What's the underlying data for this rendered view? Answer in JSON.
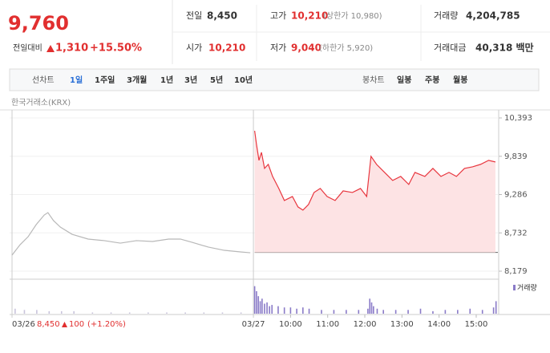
{
  "header": {
    "price": "9,760",
    "change_label": "전일대비",
    "change": "1,310",
    "change_pct": "+15.50%",
    "info": [
      [
        "전일",
        "8,450",
        ""
      ],
      [
        "고가",
        "10,210",
        "(상한가 10,980)"
      ],
      [
        "거래량",
        "4,204,785",
        ""
      ],
      [
        "시가",
        "10,210",
        ""
      ],
      [
        "저가",
        "9,040",
        "(하한가 5,920)"
      ],
      [
        "거래대금",
        "40,318 백만",
        ""
      ]
    ]
  },
  "tabs": {
    "line_label": "선차트",
    "line_items": [
      "1일",
      "1주일",
      "3개월",
      "1년",
      "3년",
      "5년",
      "10년"
    ],
    "selected": 0,
    "candle_label": "봉차트",
    "candle_items": [
      "일봉",
      "주봉",
      "월봉"
    ]
  },
  "source": "한국거래소(KRX)",
  "chart_data": {
    "type": "line",
    "xlim": [
      0,
      785
    ],
    "xticks": [
      {
        "value": 0,
        "label": "03/26"
      },
      {
        "value": 390,
        "label": "03/27"
      },
      {
        "value": 450,
        "label": "10:00"
      },
      {
        "value": 510,
        "label": "11:00"
      },
      {
        "value": 570,
        "label": "12:00"
      },
      {
        "value": 630,
        "label": "13:00"
      },
      {
        "value": 690,
        "label": "14:00"
      },
      {
        "value": 750,
        "label": "15:00"
      }
    ],
    "ylim": [
      8179,
      10393
    ],
    "yticks": [
      {
        "value": 8179,
        "label": "8,179"
      },
      {
        "value": 8732,
        "label": "8,732"
      },
      {
        "value": 9286,
        "label": "9,286"
      },
      {
        "value": 9839,
        "label": "9,839"
      },
      {
        "value": 10393,
        "label": "10,393"
      }
    ],
    "reference_line": 8450,
    "series": [
      {
        "color": "#b8b8b8",
        "fill": false,
        "x": [
          0,
          13,
          26,
          39,
          52,
          58,
          67,
          78,
          97,
          123,
          149,
          175,
          201,
          227,
          253,
          272,
          291,
          317,
          343,
          369,
          385
        ],
        "values": [
          8411,
          8561,
          8677,
          8851,
          8990,
          9025,
          8910,
          8816,
          8712,
          8643,
          8620,
          8584,
          8620,
          8608,
          8643,
          8643,
          8596,
          8527,
          8480,
          8457,
          8445
        ]
      },
      {
        "color": "#e8373f",
        "fill": true,
        "x": [
          392,
          395,
          399,
          403,
          408,
          414,
          421,
          431,
          440,
          453,
          462,
          470,
          479,
          488,
          498,
          509,
          522,
          535,
          550,
          563,
          573,
          580,
          589,
          602,
          615,
          628,
          641,
          651,
          667,
          680,
          693,
          706,
          718,
          731,
          744,
          757,
          770,
          781
        ],
        "values": [
          10207,
          10010,
          9780,
          9896,
          9664,
          9722,
          9548,
          9374,
          9200,
          9258,
          9107,
          9061,
          9142,
          9316,
          9374,
          9258,
          9200,
          9339,
          9316,
          9374,
          9258,
          9838,
          9722,
          9606,
          9490,
          9548,
          9432,
          9606,
          9548,
          9664,
          9548,
          9606,
          9548,
          9664,
          9687,
          9722,
          9780,
          9757
        ]
      }
    ],
    "volume": {
      "name": "거래량",
      "ylim": [
        0,
        25
      ],
      "series": [
        {
          "color": "#c9c4dc",
          "x": [
            5,
            20,
            40,
            60,
            80,
            100,
            130,
            160,
            190,
            220,
            250,
            280,
            310,
            340,
            370
          ],
          "values": [
            4,
            3,
            3,
            2,
            2,
            2,
            1,
            1,
            1,
            1,
            1,
            1,
            1,
            1,
            1
          ]
        },
        {
          "color": "#8a7bc8",
          "x": [
            392,
            395,
            398,
            401,
            404,
            408,
            412,
            416,
            420,
            430,
            440,
            450,
            460,
            470,
            480,
            500,
            520,
            540,
            560,
            575,
            578,
            581,
            584,
            590,
            600,
            620,
            640,
            660,
            680,
            700,
            720,
            740,
            760,
            778,
            782
          ],
          "values": [
            22,
            18,
            14,
            10,
            12,
            8,
            9,
            6,
            7,
            6,
            5,
            5,
            4,
            5,
            4,
            3,
            3,
            3,
            3,
            4,
            12,
            9,
            6,
            4,
            3,
            3,
            3,
            4,
            2,
            3,
            3,
            4,
            3,
            5,
            10
          ]
        }
      ]
    },
    "prev_day": {
      "close": "8,450",
      "change": "100",
      "change_pct": "(+1.20%)"
    }
  }
}
